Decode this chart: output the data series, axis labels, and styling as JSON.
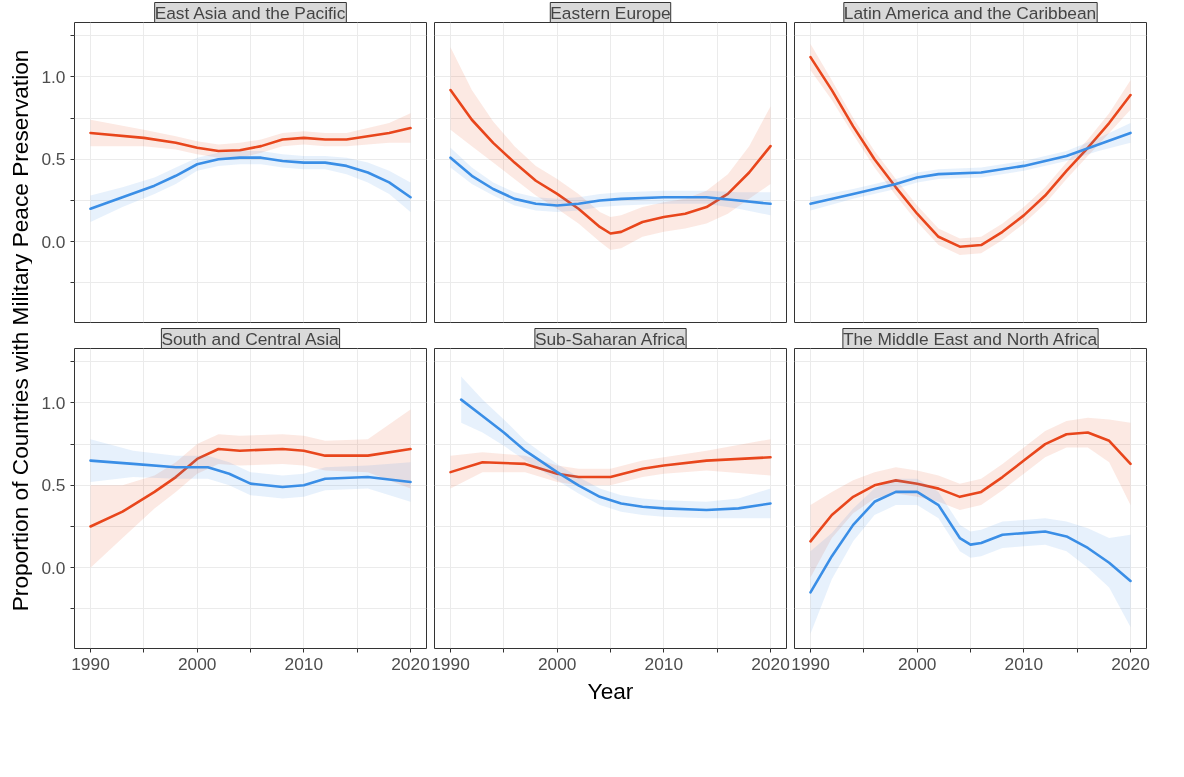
{
  "chart_data": [
    {
      "type": "line",
      "title": "East Asia and the Pacific",
      "ylabel": "Proportion of Countries with Military Peace Preservation",
      "xlim": [
        1988.5,
        2021.5
      ],
      "ylim": [
        -0.49,
        1.33
      ],
      "xticks": [
        1990,
        {
          "value": 1995,
          "label": null
        },
        2000,
        {
          "value": 2005,
          "label": null
        },
        2010,
        {
          "value": 2015,
          "label": null
        },
        2020
      ],
      "yticks": [
        {
          "value": -0.25,
          "label": null
        },
        {
          "value": 0,
          "label": "0.0"
        },
        {
          "value": 0.25,
          "label": null
        },
        {
          "value": 0.5,
          "label": "0.5"
        },
        {
          "value": 0.75,
          "label": null
        },
        {
          "value": 1,
          "label": "1.0"
        },
        {
          "value": 1.25,
          "label": null
        }
      ],
      "grid": true,
      "tick_labels": "y",
      "series": [
        {
          "color": "#e8461c",
          "x": [
            1990,
            1995,
            1998,
            2000,
            2002,
            2004,
            2006,
            2008,
            2010,
            2012,
            2014,
            2016,
            2018,
            2020
          ],
          "values": [
            0.66,
            0.63,
            0.6,
            0.57,
            0.55,
            0.555,
            0.58,
            0.62,
            0.63,
            0.62,
            0.62,
            0.64,
            0.66,
            0.69
          ],
          "lower": [
            0.58,
            0.58,
            0.56,
            0.53,
            0.51,
            0.51,
            0.54,
            0.58,
            0.59,
            0.58,
            0.58,
            0.59,
            0.6,
            0.6
          ],
          "upper": [
            0.74,
            0.68,
            0.64,
            0.61,
            0.59,
            0.6,
            0.62,
            0.66,
            0.67,
            0.66,
            0.66,
            0.69,
            0.72,
            0.78
          ]
        },
        {
          "color": "#3a8ee6",
          "x": [
            1990,
            1993,
            1996,
            1998,
            2000,
            2002,
            2004,
            2006,
            2008,
            2010,
            2012,
            2014,
            2016,
            2018,
            2020
          ],
          "values": [
            0.2,
            0.27,
            0.34,
            0.4,
            0.47,
            0.5,
            0.51,
            0.51,
            0.49,
            0.48,
            0.48,
            0.46,
            0.42,
            0.36,
            0.27
          ],
          "lower": [
            0.12,
            0.21,
            0.29,
            0.35,
            0.43,
            0.46,
            0.47,
            0.47,
            0.45,
            0.44,
            0.44,
            0.41,
            0.36,
            0.29,
            0.18
          ],
          "upper": [
            0.28,
            0.33,
            0.39,
            0.45,
            0.51,
            0.54,
            0.55,
            0.55,
            0.53,
            0.52,
            0.52,
            0.51,
            0.48,
            0.43,
            0.36
          ]
        }
      ]
    },
    {
      "type": "line",
      "title": "Eastern Europe",
      "xlim": [
        1988.5,
        2021.5
      ],
      "ylim": [
        -0.49,
        1.33
      ],
      "xticks": [
        1990,
        {
          "value": 1995,
          "label": null
        },
        2000,
        {
          "value": 2005,
          "label": null
        },
        2010,
        {
          "value": 2015,
          "label": null
        },
        2020
      ],
      "yticks": [
        {
          "value": -0.25,
          "label": null
        },
        {
          "value": 0,
          "label": null
        },
        {
          "value": 0.25,
          "label": null
        },
        {
          "value": 0.5,
          "label": null
        },
        {
          "value": 0.75,
          "label": null
        },
        {
          "value": 1,
          "label": null
        },
        {
          "value": 1.25,
          "label": null
        }
      ],
      "grid": true,
      "tick_labels": false,
      "series": [
        {
          "color": "#e8461c",
          "x": [
            1990,
            1992,
            1994,
            1996,
            1998,
            2000,
            2002,
            2004,
            2005,
            2006,
            2008,
            2010,
            2012,
            2014,
            2016,
            2018,
            2020
          ],
          "values": [
            0.92,
            0.74,
            0.6,
            0.48,
            0.37,
            0.29,
            0.2,
            0.09,
            0.05,
            0.06,
            0.12,
            0.15,
            0.17,
            0.21,
            0.29,
            0.42,
            0.58
          ],
          "lower": [
            0.68,
            0.58,
            0.48,
            0.38,
            0.28,
            0.2,
            0.11,
            0.0,
            -0.05,
            -0.04,
            0.03,
            0.06,
            0.08,
            0.11,
            0.17,
            0.26,
            0.35
          ],
          "upper": [
            1.18,
            0.92,
            0.73,
            0.58,
            0.46,
            0.38,
            0.29,
            0.18,
            0.15,
            0.16,
            0.21,
            0.24,
            0.26,
            0.31,
            0.41,
            0.58,
            0.82
          ]
        },
        {
          "color": "#3a8ee6",
          "x": [
            1990,
            1992,
            1994,
            1996,
            1998,
            2000,
            2002,
            2004,
            2006,
            2010,
            2014,
            2017,
            2020
          ],
          "values": [
            0.51,
            0.4,
            0.32,
            0.26,
            0.23,
            0.22,
            0.23,
            0.25,
            0.26,
            0.27,
            0.27,
            0.25,
            0.23
          ],
          "lower": [
            0.45,
            0.35,
            0.28,
            0.22,
            0.19,
            0.18,
            0.19,
            0.21,
            0.22,
            0.23,
            0.23,
            0.2,
            0.16
          ],
          "upper": [
            0.57,
            0.45,
            0.36,
            0.3,
            0.27,
            0.26,
            0.27,
            0.29,
            0.3,
            0.31,
            0.31,
            0.3,
            0.3
          ]
        }
      ]
    },
    {
      "type": "line",
      "title": "Latin America and the Caribbean",
      "xlim": [
        1988.5,
        2021.5
      ],
      "ylim": [
        -0.49,
        1.33
      ],
      "xticks": [
        1990,
        {
          "value": 1995,
          "label": null
        },
        2000,
        {
          "value": 2005,
          "label": null
        },
        2010,
        {
          "value": 2015,
          "label": null
        },
        2020
      ],
      "yticks": [
        {
          "value": -0.25,
          "label": null
        },
        {
          "value": 0,
          "label": null
        },
        {
          "value": 0.25,
          "label": null
        },
        {
          "value": 0.5,
          "label": null
        },
        {
          "value": 0.75,
          "label": null
        },
        {
          "value": 1,
          "label": null
        },
        {
          "value": 1.25,
          "label": null
        }
      ],
      "grid": true,
      "tick_labels": false,
      "series": [
        {
          "color": "#e8461c",
          "x": [
            1990,
            1992,
            1994,
            1996,
            1998,
            2000,
            2002,
            2004,
            2006,
            2008,
            2010,
            2012,
            2014,
            2016,
            2018,
            2020
          ],
          "values": [
            1.12,
            0.92,
            0.7,
            0.5,
            0.33,
            0.17,
            0.03,
            -0.03,
            -0.02,
            0.06,
            0.16,
            0.28,
            0.43,
            0.57,
            0.72,
            0.89
          ],
          "lower": [
            1.04,
            0.86,
            0.65,
            0.45,
            0.28,
            0.12,
            -0.02,
            -0.08,
            -0.07,
            0.01,
            0.11,
            0.23,
            0.38,
            0.52,
            0.66,
            0.8
          ],
          "upper": [
            1.2,
            0.98,
            0.75,
            0.55,
            0.38,
            0.22,
            0.08,
            0.02,
            0.03,
            0.11,
            0.21,
            0.33,
            0.48,
            0.62,
            0.78,
            0.98
          ]
        },
        {
          "color": "#3a8ee6",
          "x": [
            1990,
            1994,
            1998,
            2000,
            2002,
            2006,
            2010,
            2014,
            2017,
            2020
          ],
          "values": [
            0.23,
            0.29,
            0.35,
            0.39,
            0.41,
            0.42,
            0.46,
            0.52,
            0.59,
            0.66
          ],
          "lower": [
            0.19,
            0.26,
            0.32,
            0.36,
            0.38,
            0.39,
            0.43,
            0.49,
            0.55,
            0.6
          ],
          "upper": [
            0.27,
            0.32,
            0.38,
            0.42,
            0.44,
            0.45,
            0.49,
            0.55,
            0.63,
            0.72
          ]
        }
      ]
    },
    {
      "type": "line",
      "title": "South and Central Asia",
      "xlim": [
        1988.5,
        2021.5
      ],
      "ylim": [
        -0.49,
        1.33
      ],
      "xticks": [
        1990,
        {
          "value": 1995,
          "label": null
        },
        2000,
        {
          "value": 2005,
          "label": null
        },
        2010,
        {
          "value": 2015,
          "label": null
        },
        2020
      ],
      "yticks": [
        {
          "value": -0.25,
          "label": null
        },
        {
          "value": 0,
          "label": "0.0"
        },
        {
          "value": 0.25,
          "label": null
        },
        {
          "value": 0.5,
          "label": "0.5"
        },
        {
          "value": 0.75,
          "label": null
        },
        {
          "value": 1,
          "label": "1.0"
        },
        {
          "value": 1.25,
          "label": null
        }
      ],
      "grid": true,
      "series": [
        {
          "color": "#e8461c",
          "x": [
            1990,
            1993,
            1996,
            1998,
            2000,
            2002,
            2004,
            2008,
            2010,
            2012,
            2016,
            2020
          ],
          "values": [
            0.25,
            0.34,
            0.46,
            0.55,
            0.66,
            0.72,
            0.71,
            0.72,
            0.71,
            0.68,
            0.68,
            0.72
          ],
          "lower": [
            0.0,
            0.18,
            0.36,
            0.46,
            0.57,
            0.63,
            0.62,
            0.63,
            0.62,
            0.59,
            0.58,
            0.48
          ],
          "upper": [
            0.5,
            0.5,
            0.56,
            0.64,
            0.75,
            0.81,
            0.8,
            0.81,
            0.8,
            0.77,
            0.78,
            0.96
          ]
        },
        {
          "color": "#3a8ee6",
          "x": [
            1990,
            1994,
            1998,
            2001,
            2003,
            2005,
            2008,
            2010,
            2012,
            2016,
            2020
          ],
          "values": [
            0.65,
            0.63,
            0.61,
            0.61,
            0.57,
            0.51,
            0.49,
            0.5,
            0.54,
            0.55,
            0.52
          ],
          "lower": [
            0.52,
            0.55,
            0.54,
            0.54,
            0.5,
            0.44,
            0.42,
            0.43,
            0.47,
            0.48,
            0.4
          ],
          "upper": [
            0.78,
            0.71,
            0.68,
            0.68,
            0.64,
            0.58,
            0.56,
            0.57,
            0.61,
            0.62,
            0.64
          ]
        }
      ]
    },
    {
      "type": "line",
      "title": "Sub-Saharan Africa",
      "xlabel": "Year",
      "xlim": [
        1988.5,
        2021.5
      ],
      "ylim": [
        -0.49,
        1.33
      ],
      "xticks": [
        1990,
        {
          "value": 1995,
          "label": null
        },
        2000,
        {
          "value": 2005,
          "label": null
        },
        2010,
        {
          "value": 2015,
          "label": null
        },
        2020
      ],
      "yticks": [
        {
          "value": -0.25,
          "label": null
        },
        {
          "value": 0,
          "label": null
        },
        {
          "value": 0.25,
          "label": null
        },
        {
          "value": 0.5,
          "label": null
        },
        {
          "value": 0.75,
          "label": null
        },
        {
          "value": 1,
          "label": null
        },
        {
          "value": 1.25,
          "label": null
        }
      ],
      "grid": true,
      "tick_labels": "x",
      "series": [
        {
          "color": "#e8461c",
          "x": [
            1990,
            1993,
            1997,
            2000,
            2002,
            2005,
            2008,
            2010,
            2014,
            2020
          ],
          "values": [
            0.58,
            0.64,
            0.63,
            0.57,
            0.55,
            0.55,
            0.6,
            0.62,
            0.65,
            0.67
          ],
          "lower": [
            0.48,
            0.58,
            0.58,
            0.52,
            0.5,
            0.5,
            0.55,
            0.57,
            0.59,
            0.56
          ],
          "upper": [
            0.68,
            0.7,
            0.68,
            0.62,
            0.6,
            0.6,
            0.65,
            0.67,
            0.71,
            0.78
          ]
        },
        {
          "color": "#3a8ee6",
          "x": [
            1991,
            1993,
            1995,
            1997,
            2000,
            2002,
            2004,
            2006,
            2008,
            2010,
            2014,
            2017,
            2020
          ],
          "values": [
            1.02,
            0.92,
            0.82,
            0.71,
            0.58,
            0.5,
            0.43,
            0.39,
            0.37,
            0.36,
            0.35,
            0.36,
            0.39
          ],
          "lower": [
            0.88,
            0.82,
            0.74,
            0.65,
            0.53,
            0.45,
            0.38,
            0.34,
            0.32,
            0.31,
            0.3,
            0.3,
            0.3
          ],
          "upper": [
            1.16,
            1.02,
            0.9,
            0.77,
            0.63,
            0.55,
            0.48,
            0.44,
            0.42,
            0.41,
            0.4,
            0.42,
            0.48
          ]
        }
      ]
    },
    {
      "type": "line",
      "title": "The Middle East and North Africa",
      "xlim": [
        1988.5,
        2021.5
      ],
      "ylim": [
        -0.49,
        1.33
      ],
      "xticks": [
        1990,
        {
          "value": 1995,
          "label": null
        },
        2000,
        {
          "value": 2005,
          "label": null
        },
        2010,
        {
          "value": 2015,
          "label": null
        },
        2020
      ],
      "yticks": [
        {
          "value": -0.25,
          "label": null
        },
        {
          "value": 0,
          "label": null
        },
        {
          "value": 0.25,
          "label": null
        },
        {
          "value": 0.5,
          "label": null
        },
        {
          "value": 0.75,
          "label": null
        },
        {
          "value": 1,
          "label": null
        },
        {
          "value": 1.25,
          "label": null
        }
      ],
      "grid": true,
      "tick_labels": "x",
      "series": [
        {
          "color": "#e8461c",
          "x": [
            1990,
            1992,
            1994,
            1996,
            1998,
            2000,
            2002,
            2004,
            2006,
            2008,
            2010,
            2012,
            2014,
            2016,
            2018,
            2020
          ],
          "values": [
            0.16,
            0.32,
            0.43,
            0.5,
            0.53,
            0.51,
            0.48,
            0.43,
            0.46,
            0.55,
            0.65,
            0.75,
            0.81,
            0.82,
            0.77,
            0.63
          ],
          "lower": [
            -0.06,
            0.18,
            0.33,
            0.42,
            0.45,
            0.43,
            0.4,
            0.35,
            0.38,
            0.47,
            0.57,
            0.67,
            0.73,
            0.73,
            0.64,
            0.38
          ],
          "upper": [
            0.38,
            0.46,
            0.53,
            0.58,
            0.61,
            0.59,
            0.56,
            0.51,
            0.54,
            0.63,
            0.73,
            0.83,
            0.89,
            0.91,
            0.9,
            0.88
          ]
        },
        {
          "color": "#3a8ee6",
          "x": [
            1990,
            1992,
            1994,
            1996,
            1998,
            2000,
            2002,
            2004,
            2005,
            2006,
            2008,
            2010,
            2012,
            2014,
            2016,
            2018,
            2020
          ],
          "values": [
            -0.15,
            0.07,
            0.26,
            0.4,
            0.46,
            0.46,
            0.38,
            0.18,
            0.14,
            0.15,
            0.2,
            0.21,
            0.22,
            0.19,
            0.12,
            0.03,
            -0.08
          ],
          "lower": [
            -0.4,
            -0.07,
            0.16,
            0.32,
            0.38,
            0.38,
            0.3,
            0.1,
            0.06,
            0.07,
            0.12,
            0.13,
            0.14,
            0.1,
            0.0,
            -0.12,
            -0.36
          ],
          "upper": [
            0.1,
            0.21,
            0.36,
            0.48,
            0.54,
            0.54,
            0.46,
            0.26,
            0.22,
            0.23,
            0.28,
            0.29,
            0.3,
            0.28,
            0.24,
            0.18,
            0.2
          ]
        }
      ]
    }
  ]
}
